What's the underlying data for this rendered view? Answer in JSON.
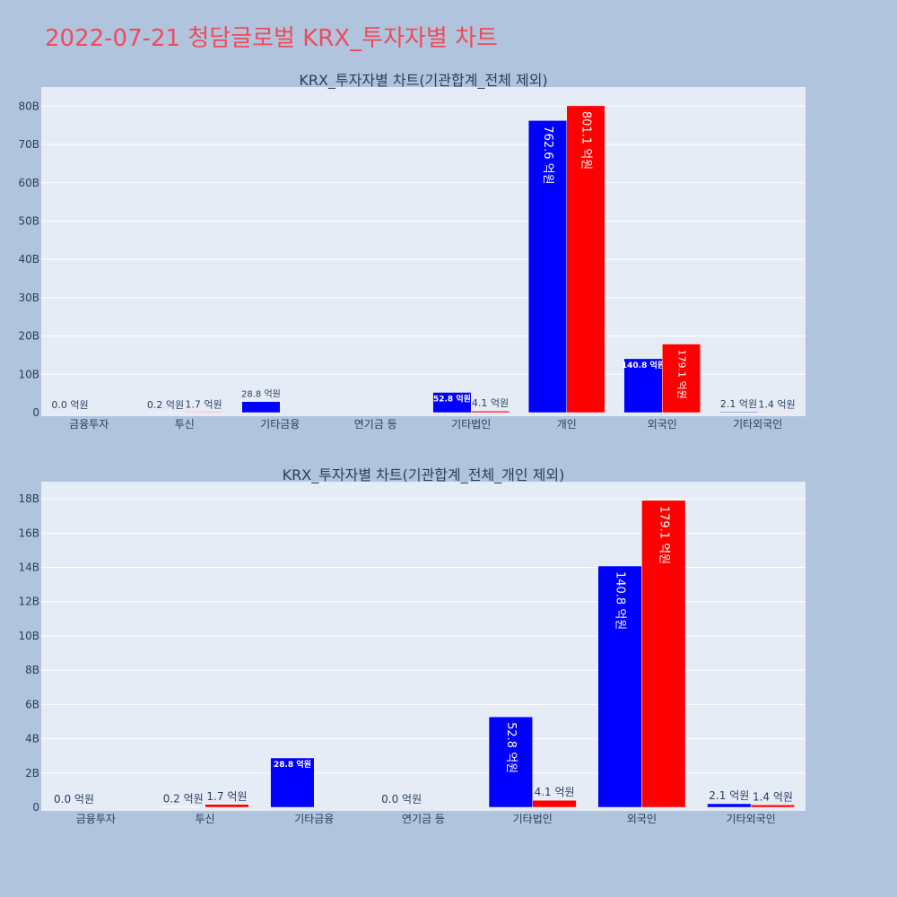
{
  "page": {
    "title": "2022-07-21 청담글로벌 KRX_투자자별 차트"
  },
  "colors": {
    "background": "#b0c4de",
    "plot_background": "#e5ecf6",
    "title": "#ef4b5c",
    "series_1": "#0000ff",
    "series_2": "#ff0000",
    "text": "#2a3f5f"
  },
  "chart_data": [
    {
      "type": "bar",
      "title": "KRX_투자자별 차트(기관합계_전체 제외)",
      "xlabel": "",
      "ylabel": "",
      "categories": [
        "금융투자",
        "투신",
        "기타금융",
        "연기금 등",
        "기타법인",
        "개인",
        "외국인",
        "기타외국인"
      ],
      "series": [
        {
          "color": "#0000ff",
          "values": [
            0.0,
            0.02,
            2.88,
            0.0,
            5.28,
            76.26,
            14.08,
            0.21
          ],
          "labels": [
            "0.0 억원",
            "0.2 억원",
            "28.8 억원",
            "",
            "52.8 억원",
            "762.6 억원",
            "140.8 억원",
            "2.1 억원"
          ]
        },
        {
          "color": "#ff0000",
          "values": [
            0.0,
            0.17,
            0.0,
            0.0,
            0.41,
            80.11,
            17.91,
            0.14
          ],
          "labels": [
            "",
            "1.7 억원",
            "",
            "",
            "4.1 억원",
            "801.1 억원",
            "179.1 억원",
            "1.4 억원"
          ]
        }
      ],
      "ylim": [
        0,
        85
      ],
      "yticks": [
        0,
        10,
        20,
        30,
        40,
        50,
        60,
        70,
        80
      ],
      "ytick_labels": [
        "0",
        "10B",
        "20B",
        "30B",
        "40B",
        "50B",
        "60B",
        "70B",
        "80B"
      ],
      "grid": true
    },
    {
      "type": "bar",
      "title": "KRX_투자자별 차트(기관합계_전체_개인 제외)",
      "xlabel": "",
      "ylabel": "",
      "categories": [
        "금융투자",
        "투신",
        "기타금융",
        "연기금 등",
        "기타법인",
        "외국인",
        "기타외국인"
      ],
      "series": [
        {
          "color": "#0000ff",
          "values": [
            0.0,
            0.02,
            2.88,
            0.0,
            5.28,
            14.08,
            0.21
          ],
          "labels": [
            "0.0 억원",
            "0.2 억원",
            "28.8 억원",
            "0.0 억원",
            "52.8 억원",
            "140.8 억원",
            "2.1 억원"
          ]
        },
        {
          "color": "#ff0000",
          "values": [
            0.0,
            0.17,
            0.0,
            0.0,
            0.41,
            17.91,
            0.14
          ],
          "labels": [
            "",
            "1.7 억원",
            "",
            "",
            "4.1 억원",
            "179.1 억원",
            "1.4 억원"
          ]
        }
      ],
      "ylim": [
        0,
        19
      ],
      "yticks": [
        0,
        2,
        4,
        6,
        8,
        10,
        12,
        14,
        16,
        18
      ],
      "ytick_labels": [
        "0",
        "2B",
        "4B",
        "6B",
        "8B",
        "10B",
        "12B",
        "14B",
        "16B",
        "18B"
      ],
      "grid": true
    }
  ]
}
